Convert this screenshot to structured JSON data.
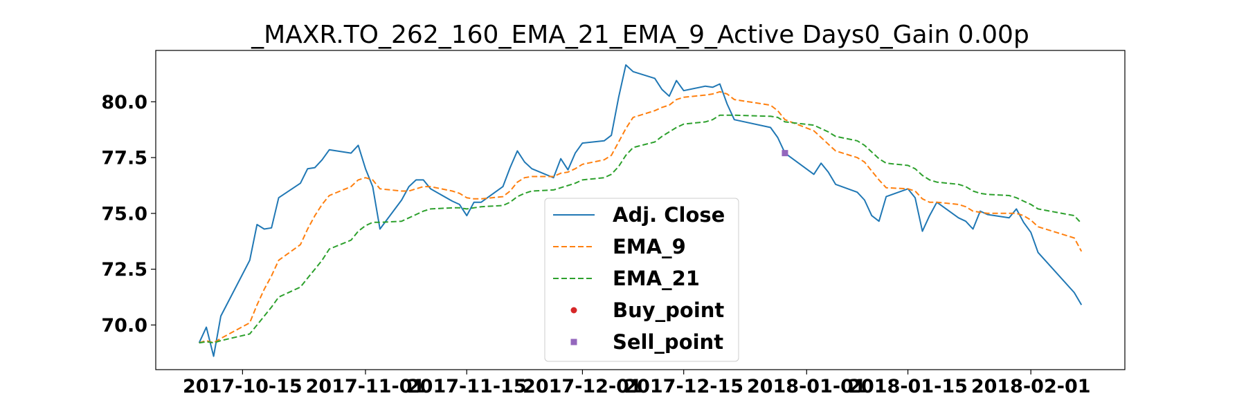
{
  "chart_data": {
    "type": "line",
    "title": "_MAXR.TO_262_160_EMA_21_EMA_9_Active Days0_Gain   0.00p",
    "xlabel": "",
    "ylabel": "",
    "x_ticks": [
      "2017-10-15",
      "2017-11-01",
      "2017-11-15",
      "2017-12-01",
      "2017-12-15",
      "2018-01-01",
      "2018-01-15",
      "2018-02-01"
    ],
    "y_ticks": [
      "70.0",
      "72.5",
      "75.0",
      "77.5",
      "80.0"
    ],
    "xlim": [
      "2017-10-03",
      "2018-02-14"
    ],
    "ylim": [
      68.0,
      82.3
    ],
    "grid": false,
    "legend_position": "lower-center",
    "series": [
      {
        "name": "Adj. Close",
        "style": "solid",
        "color": "#1f77b4",
        "marker": "none",
        "points": [
          [
            "2017-10-09",
            69.2
          ],
          [
            "2017-10-10",
            69.9
          ],
          [
            "2017-10-11",
            68.6
          ],
          [
            "2017-10-12",
            70.4
          ],
          [
            "2017-10-16",
            72.9
          ],
          [
            "2017-10-17",
            74.5
          ],
          [
            "2017-10-18",
            74.3
          ],
          [
            "2017-10-19",
            74.35
          ],
          [
            "2017-10-20",
            75.7
          ],
          [
            "2017-10-23",
            76.35
          ],
          [
            "2017-10-24",
            77.0
          ],
          [
            "2017-10-25",
            77.05
          ],
          [
            "2017-10-26",
            77.4
          ],
          [
            "2017-10-27",
            77.85
          ],
          [
            "2017-10-30",
            77.7
          ],
          [
            "2017-10-31",
            78.05
          ],
          [
            "2017-11-01",
            77.0
          ],
          [
            "2017-11-02",
            76.2
          ],
          [
            "2017-11-03",
            74.3
          ],
          [
            "2017-11-06",
            75.6
          ],
          [
            "2017-11-07",
            76.2
          ],
          [
            "2017-11-08",
            76.5
          ],
          [
            "2017-11-09",
            76.5
          ],
          [
            "2017-11-10",
            76.1
          ],
          [
            "2017-11-13",
            75.55
          ],
          [
            "2017-11-14",
            75.4
          ],
          [
            "2017-11-15",
            74.9
          ],
          [
            "2017-11-16",
            75.5
          ],
          [
            "2017-11-17",
            75.5
          ],
          [
            "2017-11-20",
            76.2
          ],
          [
            "2017-11-21",
            77.05
          ],
          [
            "2017-11-22",
            77.8
          ],
          [
            "2017-11-23",
            77.3
          ],
          [
            "2017-11-24",
            77.0
          ],
          [
            "2017-11-27",
            76.6
          ],
          [
            "2017-11-28",
            77.45
          ],
          [
            "2017-11-29",
            76.95
          ],
          [
            "2017-11-30",
            77.7
          ],
          [
            "2017-12-01",
            78.15
          ],
          [
            "2017-12-04",
            78.25
          ],
          [
            "2017-12-05",
            78.5
          ],
          [
            "2017-12-06",
            80.2
          ],
          [
            "2017-12-07",
            81.65
          ],
          [
            "2017-12-08",
            81.35
          ],
          [
            "2017-12-11",
            81.05
          ],
          [
            "2017-12-12",
            80.55
          ],
          [
            "2017-12-13",
            80.25
          ],
          [
            "2017-12-14",
            80.95
          ],
          [
            "2017-12-15",
            80.5
          ],
          [
            "2017-12-18",
            80.7
          ],
          [
            "2017-12-19",
            80.65
          ],
          [
            "2017-12-20",
            80.8
          ],
          [
            "2017-12-21",
            79.9
          ],
          [
            "2017-12-22",
            79.2
          ],
          [
            "2017-12-27",
            78.85
          ],
          [
            "2017-12-28",
            78.4
          ],
          [
            "2017-12-29",
            77.7
          ],
          [
            "2018-01-02",
            76.75
          ],
          [
            "2018-01-03",
            77.25
          ],
          [
            "2018-01-04",
            76.85
          ],
          [
            "2018-01-05",
            76.3
          ],
          [
            "2018-01-08",
            75.95
          ],
          [
            "2018-01-09",
            75.6
          ],
          [
            "2018-01-10",
            74.9
          ],
          [
            "2018-01-11",
            74.65
          ],
          [
            "2018-01-12",
            75.75
          ],
          [
            "2018-01-15",
            76.1
          ],
          [
            "2018-01-16",
            75.7
          ],
          [
            "2018-01-17",
            74.2
          ],
          [
            "2018-01-18",
            74.9
          ],
          [
            "2018-01-19",
            75.5
          ],
          [
            "2018-01-22",
            74.8
          ],
          [
            "2018-01-23",
            74.65
          ],
          [
            "2018-01-24",
            74.3
          ],
          [
            "2018-01-25",
            75.1
          ],
          [
            "2018-01-26",
            74.95
          ],
          [
            "2018-01-29",
            74.8
          ],
          [
            "2018-01-30",
            75.2
          ],
          [
            "2018-01-31",
            74.6
          ],
          [
            "2018-02-01",
            74.15
          ],
          [
            "2018-02-02",
            73.25
          ],
          [
            "2018-02-07",
            71.45
          ],
          [
            "2018-02-08",
            70.9
          ]
        ]
      },
      {
        "name": "EMA_9",
        "style": "dashed",
        "color": "#ff7f0e",
        "marker": "none",
        "points": [
          [
            "2017-10-09",
            69.2
          ],
          [
            "2017-10-10",
            69.3
          ],
          [
            "2017-10-11",
            69.2
          ],
          [
            "2017-10-12",
            69.4
          ],
          [
            "2017-10-16",
            70.1
          ],
          [
            "2017-10-17",
            70.9
          ],
          [
            "2017-10-18",
            71.6
          ],
          [
            "2017-10-19",
            72.2
          ],
          [
            "2017-10-20",
            72.9
          ],
          [
            "2017-10-23",
            73.6
          ],
          [
            "2017-10-24",
            74.3
          ],
          [
            "2017-10-25",
            74.9
          ],
          [
            "2017-10-26",
            75.4
          ],
          [
            "2017-10-27",
            75.8
          ],
          [
            "2017-10-30",
            76.2
          ],
          [
            "2017-10-31",
            76.5
          ],
          [
            "2017-11-01",
            76.6
          ],
          [
            "2017-11-02",
            76.5
          ],
          [
            "2017-11-03",
            76.1
          ],
          [
            "2017-11-06",
            76.0
          ],
          [
            "2017-11-07",
            76.0
          ],
          [
            "2017-11-08",
            76.1
          ],
          [
            "2017-11-09",
            76.2
          ],
          [
            "2017-11-10",
            76.2
          ],
          [
            "2017-11-13",
            76.0
          ],
          [
            "2017-11-14",
            75.9
          ],
          [
            "2017-11-15",
            75.7
          ],
          [
            "2017-11-16",
            75.65
          ],
          [
            "2017-11-17",
            75.65
          ],
          [
            "2017-11-20",
            75.75
          ],
          [
            "2017-11-21",
            76.0
          ],
          [
            "2017-11-22",
            76.4
          ],
          [
            "2017-11-23",
            76.6
          ],
          [
            "2017-11-24",
            76.65
          ],
          [
            "2017-11-27",
            76.65
          ],
          [
            "2017-11-28",
            76.8
          ],
          [
            "2017-11-29",
            76.85
          ],
          [
            "2017-11-30",
            77.0
          ],
          [
            "2017-12-01",
            77.2
          ],
          [
            "2017-12-04",
            77.4
          ],
          [
            "2017-12-05",
            77.6
          ],
          [
            "2017-12-06",
            78.2
          ],
          [
            "2017-12-07",
            78.8
          ],
          [
            "2017-12-08",
            79.3
          ],
          [
            "2017-12-11",
            79.6
          ],
          [
            "2017-12-12",
            79.75
          ],
          [
            "2017-12-13",
            79.85
          ],
          [
            "2017-12-14",
            80.1
          ],
          [
            "2017-12-15",
            80.2
          ],
          [
            "2017-12-18",
            80.3
          ],
          [
            "2017-12-19",
            80.35
          ],
          [
            "2017-12-20",
            80.45
          ],
          [
            "2017-12-21",
            80.35
          ],
          [
            "2017-12-22",
            80.1
          ],
          [
            "2017-12-27",
            79.85
          ],
          [
            "2017-12-28",
            79.6
          ],
          [
            "2017-12-29",
            79.2
          ],
          [
            "2018-01-02",
            78.7
          ],
          [
            "2018-01-03",
            78.4
          ],
          [
            "2018-01-04",
            78.1
          ],
          [
            "2018-01-05",
            77.8
          ],
          [
            "2018-01-08",
            77.5
          ],
          [
            "2018-01-09",
            77.3
          ],
          [
            "2018-01-10",
            76.9
          ],
          [
            "2018-01-11",
            76.5
          ],
          [
            "2018-01-12",
            76.15
          ],
          [
            "2018-01-15",
            76.1
          ],
          [
            "2018-01-16",
            76.0
          ],
          [
            "2018-01-17",
            75.65
          ],
          [
            "2018-01-18",
            75.5
          ],
          [
            "2018-01-19",
            75.5
          ],
          [
            "2018-01-22",
            75.4
          ],
          [
            "2018-01-23",
            75.3
          ],
          [
            "2018-01-24",
            75.1
          ],
          [
            "2018-01-25",
            75.05
          ],
          [
            "2018-01-26",
            75.0
          ],
          [
            "2018-01-29",
            75.0
          ],
          [
            "2018-01-30",
            75.0
          ],
          [
            "2018-01-31",
            74.9
          ],
          [
            "2018-02-01",
            74.7
          ],
          [
            "2018-02-02",
            74.4
          ],
          [
            "2018-02-07",
            73.9
          ],
          [
            "2018-02-08",
            73.3
          ]
        ]
      },
      {
        "name": "EMA_21",
        "style": "dashed",
        "color": "#2ca02c",
        "marker": "none",
        "points": [
          [
            "2017-10-09",
            69.2
          ],
          [
            "2017-10-10",
            69.25
          ],
          [
            "2017-10-11",
            69.2
          ],
          [
            "2017-10-12",
            69.3
          ],
          [
            "2017-10-16",
            69.6
          ],
          [
            "2017-10-17",
            70.0
          ],
          [
            "2017-10-18",
            70.4
          ],
          [
            "2017-10-19",
            70.8
          ],
          [
            "2017-10-20",
            71.25
          ],
          [
            "2017-10-23",
            71.7
          ],
          [
            "2017-10-24",
            72.1
          ],
          [
            "2017-10-25",
            72.5
          ],
          [
            "2017-10-26",
            72.9
          ],
          [
            "2017-10-27",
            73.4
          ],
          [
            "2017-10-30",
            73.8
          ],
          [
            "2017-10-31",
            74.2
          ],
          [
            "2017-11-01",
            74.45
          ],
          [
            "2017-11-02",
            74.6
          ],
          [
            "2017-11-03",
            74.6
          ],
          [
            "2017-11-06",
            74.65
          ],
          [
            "2017-11-07",
            74.8
          ],
          [
            "2017-11-08",
            74.95
          ],
          [
            "2017-11-09",
            75.1
          ],
          [
            "2017-11-10",
            75.2
          ],
          [
            "2017-11-13",
            75.25
          ],
          [
            "2017-11-14",
            75.25
          ],
          [
            "2017-11-15",
            75.2
          ],
          [
            "2017-11-16",
            75.25
          ],
          [
            "2017-11-17",
            75.3
          ],
          [
            "2017-11-20",
            75.35
          ],
          [
            "2017-11-21",
            75.5
          ],
          [
            "2017-11-22",
            75.75
          ],
          [
            "2017-11-23",
            75.9
          ],
          [
            "2017-11-24",
            76.0
          ],
          [
            "2017-11-27",
            76.05
          ],
          [
            "2017-11-28",
            76.15
          ],
          [
            "2017-11-29",
            76.25
          ],
          [
            "2017-11-30",
            76.35
          ],
          [
            "2017-12-01",
            76.5
          ],
          [
            "2017-12-04",
            76.6
          ],
          [
            "2017-12-05",
            76.75
          ],
          [
            "2017-12-06",
            77.1
          ],
          [
            "2017-12-07",
            77.6
          ],
          [
            "2017-12-08",
            77.95
          ],
          [
            "2017-12-11",
            78.2
          ],
          [
            "2017-12-12",
            78.45
          ],
          [
            "2017-12-13",
            78.65
          ],
          [
            "2017-12-14",
            78.85
          ],
          [
            "2017-12-15",
            79.0
          ],
          [
            "2017-12-18",
            79.1
          ],
          [
            "2017-12-19",
            79.2
          ],
          [
            "2017-12-20",
            79.4
          ],
          [
            "2017-12-21",
            79.4
          ],
          [
            "2017-12-22",
            79.4
          ],
          [
            "2017-12-27",
            79.35
          ],
          [
            "2017-12-28",
            79.3
          ],
          [
            "2017-12-29",
            79.1
          ],
          [
            "2018-01-02",
            78.95
          ],
          [
            "2018-01-03",
            78.8
          ],
          [
            "2018-01-04",
            78.65
          ],
          [
            "2018-01-05",
            78.45
          ],
          [
            "2018-01-08",
            78.25
          ],
          [
            "2018-01-09",
            78.05
          ],
          [
            "2018-01-10",
            77.75
          ],
          [
            "2018-01-11",
            77.45
          ],
          [
            "2018-01-12",
            77.25
          ],
          [
            "2018-01-15",
            77.15
          ],
          [
            "2018-01-16",
            77.0
          ],
          [
            "2018-01-17",
            76.7
          ],
          [
            "2018-01-18",
            76.5
          ],
          [
            "2018-01-19",
            76.4
          ],
          [
            "2018-01-22",
            76.3
          ],
          [
            "2018-01-23",
            76.2
          ],
          [
            "2018-01-24",
            76.0
          ],
          [
            "2018-01-25",
            75.9
          ],
          [
            "2018-01-26",
            75.85
          ],
          [
            "2018-01-29",
            75.8
          ],
          [
            "2018-01-30",
            75.7
          ],
          [
            "2018-01-31",
            75.55
          ],
          [
            "2018-02-01",
            75.4
          ],
          [
            "2018-02-02",
            75.2
          ],
          [
            "2018-02-07",
            74.9
          ],
          [
            "2018-02-08",
            74.55
          ]
        ]
      },
      {
        "name": "Buy_point",
        "style": "none",
        "color": "#d62728",
        "marker": "circle",
        "points": []
      },
      {
        "name": "Sell_point",
        "style": "none",
        "color": "#9467bd",
        "marker": "square",
        "points": [
          [
            "2017-12-29",
            77.7
          ]
        ]
      }
    ]
  }
}
